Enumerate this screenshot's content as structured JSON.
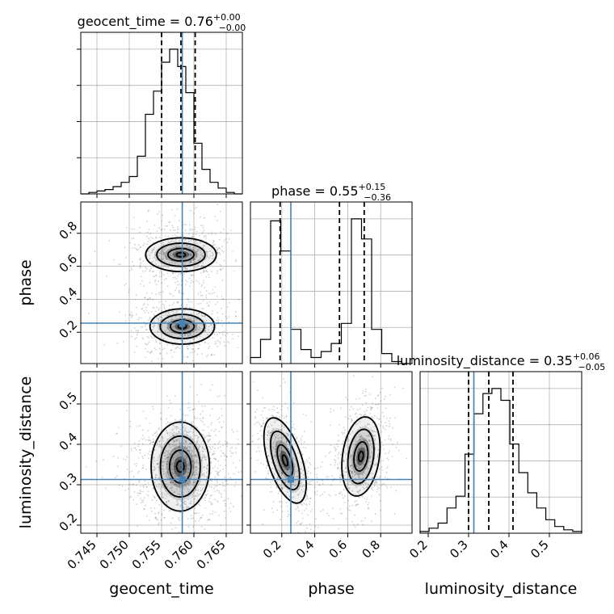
{
  "chart_data": {
    "type": "corner",
    "parameters": [
      "geocent_time",
      "phase",
      "luminosity_distance"
    ],
    "axis_labels": [
      "geocent_time",
      "phase",
      "luminosity_distance"
    ],
    "ranges": [
      [
        0.7425,
        0.7675
      ],
      [
        0.01,
        0.99
      ],
      [
        0.18,
        0.58
      ]
    ],
    "ticks": [
      {
        "values": [
          0.745,
          0.75,
          0.755,
          0.76,
          0.765
        ],
        "labels": [
          "0.745",
          "0.750",
          "0.755",
          "0.760",
          "0.765"
        ]
      },
      {
        "values": [
          0.2,
          0.4,
          0.6,
          0.8
        ],
        "labels": [
          "0.2",
          "0.4",
          "0.6",
          "0.8"
        ]
      },
      {
        "values": [
          0.2,
          0.3,
          0.4,
          0.5
        ],
        "labels": [
          "0.2",
          "0.3",
          "0.4",
          "0.5"
        ]
      }
    ],
    "truths": [
      0.7582,
      0.255,
      0.313
    ],
    "truth_color": "#4682b4",
    "quantiles": [
      [
        0.755,
        0.758,
        0.7602
      ],
      [
        0.19,
        0.55,
        0.7
      ],
      [
        0.3,
        0.35,
        0.41
      ]
    ],
    "titles": [
      {
        "param": "geocent_time",
        "median": "0.76",
        "plus": "+0.00",
        "minus": "−0.00"
      },
      {
        "param": "phase",
        "median": "0.55",
        "plus": "+0.15",
        "minus": "−0.36"
      },
      {
        "param": "luminosity_distance",
        "median": "0.35",
        "plus": "+0.06",
        "minus": "−0.05"
      }
    ],
    "histograms": [
      {
        "param": "geocent_time",
        "counts": [
          0,
          1,
          2,
          3,
          5,
          8,
          12,
          26,
          55,
          71,
          91,
          100,
          88,
          70,
          35,
          17,
          8,
          4,
          1,
          0
        ]
      },
      {
        "param": "phase",
        "counts": [
          3,
          12,
          71,
          56,
          17,
          7,
          3,
          6,
          10,
          20,
          72,
          62,
          17,
          5,
          1,
          0
        ]
      },
      {
        "param": "luminosity_distance",
        "counts": [
          1,
          3,
          6,
          15,
          22,
          47,
          71,
          83,
          86,
          79,
          53,
          36,
          24,
          15,
          8,
          4,
          2,
          1
        ]
      }
    ],
    "grid": true
  }
}
